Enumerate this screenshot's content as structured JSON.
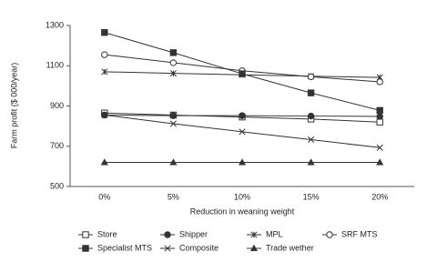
{
  "chart_data": {
    "type": "line",
    "x_label": "Reduction in weaning weight",
    "y_label": "Farm profit ($ 000/year)",
    "categories": [
      "0%",
      "5%",
      "10%",
      "15%",
      "20%"
    ],
    "ylim": [
      500,
      1300
    ],
    "yticks": [
      500,
      700,
      900,
      1100,
      1300
    ],
    "series": [
      {
        "name": "Store",
        "color": "#333333",
        "marker": "open-square",
        "values": [
          865,
          855,
          845,
          835,
          820
        ]
      },
      {
        "name": "Shipper",
        "color": "#333333",
        "marker": "filled-circle",
        "values": [
          855,
          852,
          852,
          850,
          848
        ]
      },
      {
        "name": "MPL",
        "color": "#333333",
        "marker": "star",
        "values": [
          1070,
          1062,
          1055,
          1048,
          1042
        ]
      },
      {
        "name": "SRF MTS",
        "color": "#333333",
        "marker": "open-circle",
        "values": [
          1155,
          1115,
          1075,
          1045,
          1020
        ]
      },
      {
        "name": "Specialist MTS",
        "color": "#333333",
        "marker": "filled-square",
        "values": [
          1265,
          1165,
          1060,
          965,
          878
        ]
      },
      {
        "name": "Composite",
        "color": "#333333",
        "marker": "cross",
        "values": [
          855,
          812,
          772,
          733,
          693
        ]
      },
      {
        "name": "Trade wether",
        "color": "#333333",
        "marker": "filled-triangle",
        "values": [
          620,
          620,
          620,
          620,
          620
        ]
      }
    ]
  }
}
